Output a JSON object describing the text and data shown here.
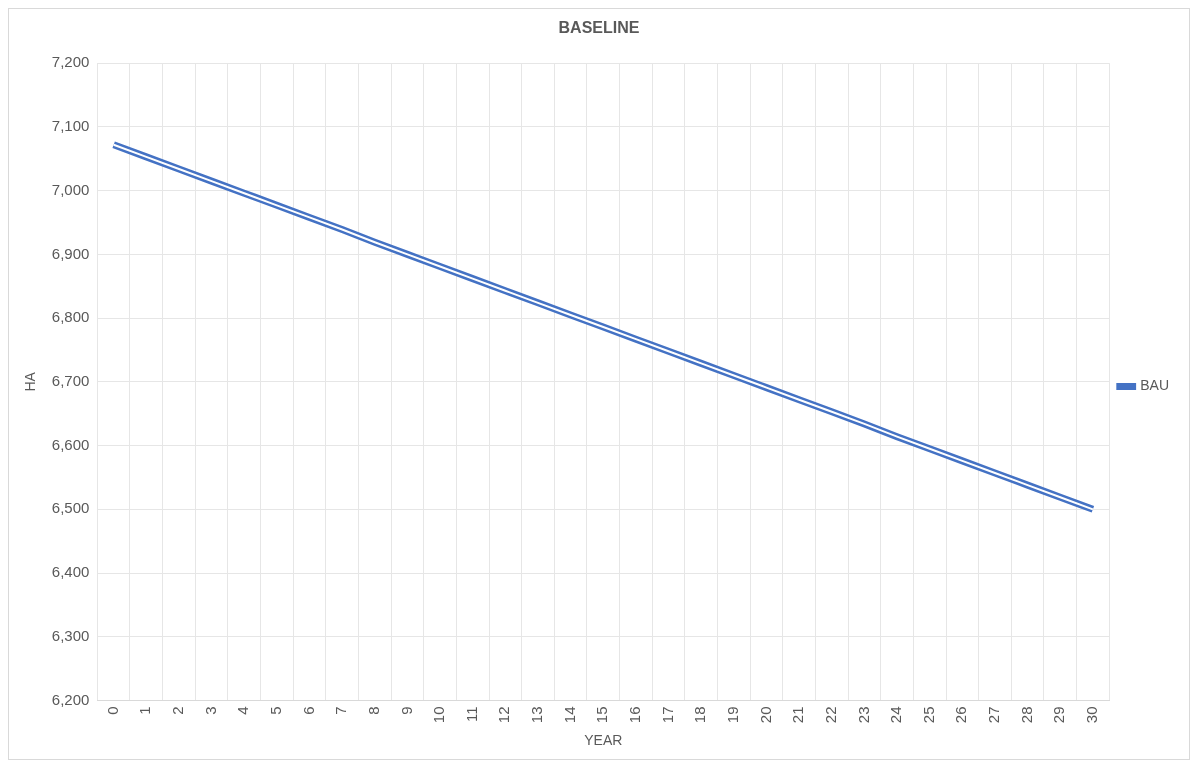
{
  "chart_data": {
    "type": "line",
    "title": "BASELINE",
    "xlabel": "YEAR",
    "ylabel": "HA",
    "categories": [
      "0",
      "1",
      "2",
      "3",
      "4",
      "5",
      "6",
      "7",
      "8",
      "9",
      "10",
      "11",
      "12",
      "13",
      "14",
      "15",
      "16",
      "17",
      "18",
      "19",
      "20",
      "21",
      "22",
      "23",
      "24",
      "25",
      "26",
      "27",
      "28",
      "29",
      "30"
    ],
    "series": [
      {
        "name": "BAU",
        "color": "#4472c4",
        "values": [
          7072,
          7053,
          7034,
          7015,
          6996,
          6977,
          6958,
          6939,
          6919,
          6900,
          6881,
          6862,
          6843,
          6824,
          6805,
          6786,
          6767,
          6748,
          6729,
          6710,
          6691,
          6672,
          6653,
          6634,
          6614,
          6595,
          6576,
          6557,
          6538,
          6519,
          6500
        ]
      }
    ],
    "ylim": [
      6200,
      7200
    ],
    "yticks": [
      {
        "value": 6200,
        "label": "6,200"
      },
      {
        "value": 6300,
        "label": "6,300"
      },
      {
        "value": 6400,
        "label": "6,400"
      },
      {
        "value": 6500,
        "label": "6,500"
      },
      {
        "value": 6600,
        "label": "6,600"
      },
      {
        "value": 6700,
        "label": "6,700"
      },
      {
        "value": 6800,
        "label": "6,800"
      },
      {
        "value": 6900,
        "label": "6,900"
      },
      {
        "value": 7000,
        "label": "7,000"
      },
      {
        "value": 7100,
        "label": "7,100"
      },
      {
        "value": 7200,
        "label": "7,200"
      }
    ],
    "grid": true,
    "legend": "right",
    "marker": "none",
    "line_style": "solid"
  }
}
